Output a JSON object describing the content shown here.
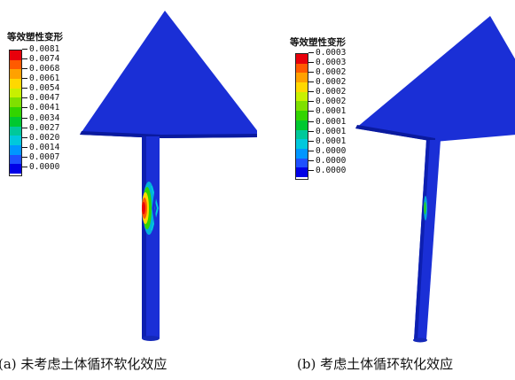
{
  "colors": {
    "model_body": "#1a2fd6",
    "model_dark": "#0a1a9e",
    "scale": [
      "#e8000b",
      "#ff5a00",
      "#ffa100",
      "#ffd800",
      "#c8f000",
      "#7fe000",
      "#32d400",
      "#00c830",
      "#00c89a",
      "#00c8dc",
      "#0096ff",
      "#1e50ff",
      "#0000e6"
    ]
  },
  "panels": [
    {
      "id": "a",
      "legend": {
        "title": "等效塑性变形",
        "ticks": [
          "0.0081",
          "0.0074",
          "0.0068",
          "0.0061",
          "0.0054",
          "0.0047",
          "0.0041",
          "0.0034",
          "0.0027",
          "0.0020",
          "0.0014",
          "0.0007",
          "0.0000"
        ]
      },
      "caption": "(a) 未考虑土体循环软化效应"
    },
    {
      "id": "b",
      "legend": {
        "title": "等效塑性变形",
        "ticks": [
          "0.0003",
          "0.0003",
          "0.0002",
          "0.0002",
          "0.0002",
          "0.0002",
          "0.0001",
          "0.0001",
          "0.0001",
          "0.0001",
          "0.0000",
          "0.0000",
          "0.0000"
        ]
      },
      "caption": "(b) 考虑土体循环软化效应"
    }
  ]
}
